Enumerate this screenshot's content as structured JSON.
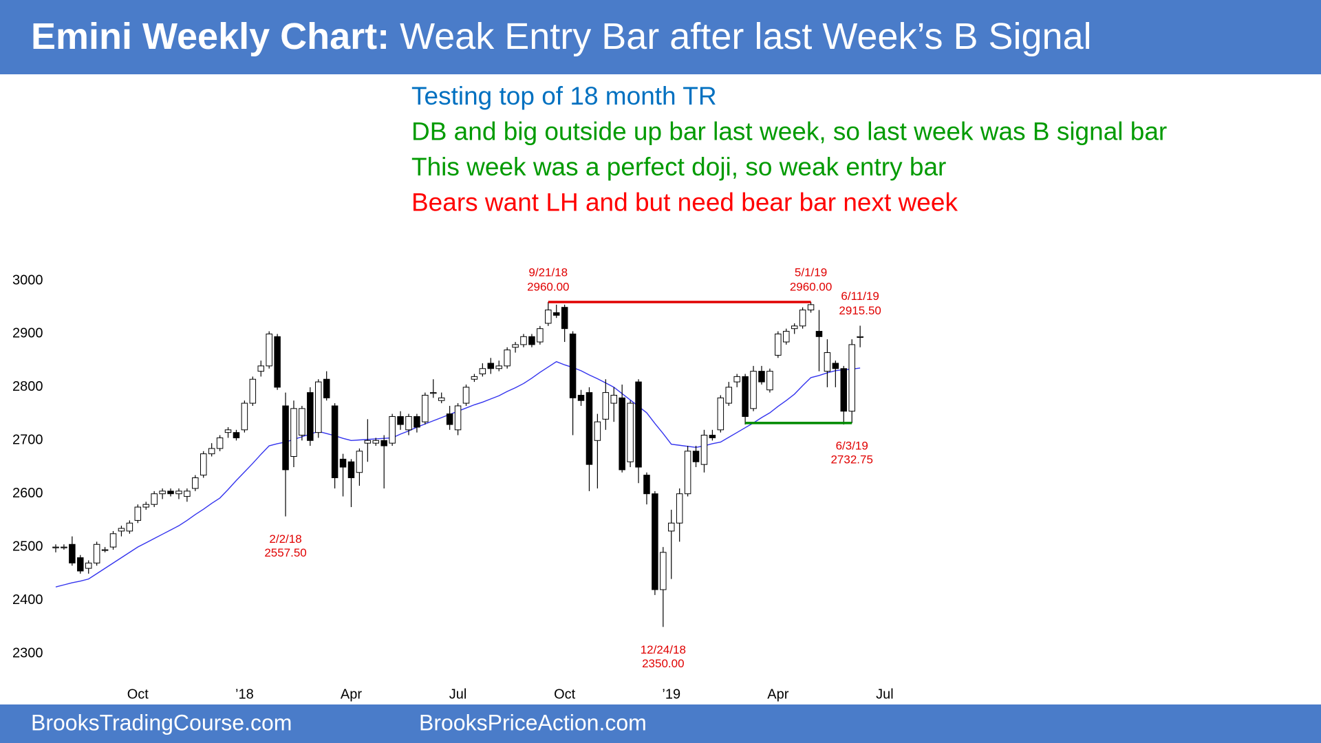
{
  "chart_data": {
    "type": "candlestick",
    "title_lead": "Emini Weekly Chart:",
    "title": " Weak Entry Bar after last Week’s B Signal",
    "notes": [
      {
        "text": "Testing top of 18 month TR",
        "color": "#0070c0"
      },
      {
        "text": "DB and big outside up bar last week, so last week was B signal bar",
        "color": "#009a00"
      },
      {
        "text": "This week was a perfect doji, so weak entry bar",
        "color": "#009a00"
      },
      {
        "text": "Bears want LH and but need bear bar next week",
        "color": "#ff0000"
      }
    ],
    "footer": [
      "BrooksTradingCourse.com",
      "BrooksPriceAction.com"
    ],
    "categories": [
      null,
      null,
      null,
      null,
      null,
      null,
      null,
      null,
      null,
      null,
      "Oct",
      null,
      null,
      null,
      null,
      null,
      null,
      null,
      null,
      null,
      null,
      null,
      null,
      "’18",
      null,
      null,
      null,
      null,
      null,
      null,
      null,
      null,
      null,
      null,
      null,
      null,
      "Apr",
      null,
      null,
      null,
      null,
      null,
      null,
      null,
      null,
      null,
      null,
      null,
      null,
      "Jul",
      null,
      null,
      null,
      null,
      null,
      null,
      null,
      null,
      null,
      null,
      null,
      null,
      "Oct",
      null,
      null,
      null,
      null,
      null,
      null,
      null,
      null,
      null,
      null,
      null,
      null,
      "’19",
      null,
      null,
      null,
      null,
      null,
      null,
      null,
      null,
      null,
      null,
      null,
      null,
      "Apr",
      null,
      null,
      null,
      null,
      null,
      null,
      null,
      null,
      null,
      null,
      null,
      null,
      "Jul",
      null
    ],
    "open": [
      2500,
      2500,
      2505,
      2480,
      2460,
      2470,
      2495,
      2500,
      2530,
      2530,
      2550,
      2575,
      2580,
      2600,
      2605,
      2600,
      2595,
      2610,
      2635,
      2675,
      2685,
      2715,
      2715,
      2720,
      2770,
      2830,
      2840,
      2895,
      2765,
      2670,
      2710,
      2790,
      2715,
      2815,
      2765,
      2665,
      2660,
      2640,
      2695,
      2695,
      2700,
      2695,
      2745,
      2720,
      2745,
      2735,
      2790,
      2775,
      2750,
      2720,
      2770,
      2815,
      2825,
      2845,
      2835,
      2840,
      2875,
      2880,
      2895,
      2885,
      2920,
      2940,
      2950,
      2900,
      2785,
      2790,
      2700,
      2740,
      2770,
      2780,
      2660,
      2810,
      2635,
      2600,
      2420,
      2530,
      2545,
      2600,
      2680,
      2655,
      2710,
      2720,
      2770,
      2810,
      2820,
      2760,
      2830,
      2795,
      2860,
      2885,
      2910,
      2915,
      2945,
      2905,
      2830,
      2845,
      2835,
      2755,
      2895,
      null,
      null,
      null,
      null
    ],
    "high": [
      2505,
      2505,
      2520,
      2485,
      2475,
      2510,
      2500,
      2530,
      2540,
      2550,
      2580,
      2585,
      2605,
      2610,
      2610,
      2610,
      2610,
      2635,
      2680,
      2695,
      2710,
      2725,
      2720,
      2775,
      2820,
      2850,
      2905,
      2900,
      2790,
      2775,
      2765,
      2800,
      2815,
      2830,
      2770,
      2675,
      2665,
      2685,
      2740,
      2705,
      2710,
      2750,
      2755,
      2750,
      2750,
      2790,
      2815,
      2790,
      2765,
      2770,
      2805,
      2825,
      2845,
      2855,
      2850,
      2875,
      2885,
      2900,
      2900,
      2915,
      2960,
      2955,
      2955,
      2905,
      2795,
      2800,
      2750,
      2815,
      2800,
      2805,
      2775,
      2815,
      2640,
      2605,
      2500,
      2570,
      2610,
      2690,
      2690,
      2720,
      2720,
      2785,
      2810,
      2825,
      2825,
      2840,
      2840,
      2835,
      2905,
      2910,
      2920,
      2950,
      2960,
      2945,
      2890,
      2850,
      2840,
      2890,
      2915.5,
      null,
      null,
      null,
      null
    ],
    "low": [
      2490,
      2495,
      2465,
      2450,
      2450,
      2465,
      2490,
      2495,
      2520,
      2525,
      2545,
      2570,
      2575,
      2590,
      2595,
      2590,
      2585,
      2605,
      2630,
      2670,
      2680,
      2705,
      2700,
      2715,
      2765,
      2820,
      2835,
      2795,
      2557.5,
      2650,
      2700,
      2690,
      2705,
      2775,
      2610,
      2595,
      2575,
      2615,
      2660,
      2690,
      2610,
      2690,
      2720,
      2710,
      2715,
      2730,
      2780,
      2770,
      2720,
      2710,
      2765,
      2810,
      2820,
      2825,
      2830,
      2835,
      2865,
      2875,
      2875,
      2880,
      2915,
      2930,
      2885,
      2710,
      2765,
      2605,
      2610,
      2720,
      2735,
      2640,
      2650,
      2620,
      2580,
      2410,
      2350,
      2440,
      2510,
      2595,
      2650,
      2640,
      2700,
      2715,
      2765,
      2800,
      2730,
      2755,
      2805,
      2790,
      2855,
      2880,
      2900,
      2910,
      2940,
      2830,
      2800,
      2800,
      2730,
      2732.75,
      2875,
      null,
      null,
      null,
      null
    ],
    "close": [
      2500,
      2500,
      2470,
      2455,
      2470,
      2505,
      2495,
      2525,
      2535,
      2545,
      2575,
      2580,
      2600,
      2605,
      2600,
      2605,
      2605,
      2630,
      2675,
      2685,
      2705,
      2720,
      2705,
      2770,
      2815,
      2840,
      2900,
      2800,
      2645,
      2760,
      2760,
      2700,
      2810,
      2780,
      2630,
      2650,
      2630,
      2680,
      2700,
      2700,
      2690,
      2745,
      2730,
      2745,
      2725,
      2785,
      2790,
      2780,
      2730,
      2765,
      2800,
      2820,
      2835,
      2835,
      2840,
      2870,
      2880,
      2895,
      2880,
      2910,
      2945,
      2935,
      2910,
      2780,
      2775,
      2655,
      2735,
      2790,
      2785,
      2645,
      2770,
      2650,
      2600,
      2420,
      2490,
      2545,
      2600,
      2680,
      2660,
      2710,
      2705,
      2780,
      2800,
      2820,
      2745,
      2830,
      2810,
      2830,
      2900,
      2905,
      2915,
      2945,
      2955,
      2895,
      2865,
      2835,
      2755,
      2880,
      2895,
      null,
      null,
      null,
      null
    ],
    "bull_color": "#ffffff",
    "bear_color": "#000000",
    "ma": {
      "color": "#3333ee",
      "values": [
        2425,
        2429,
        2433,
        2436,
        2440,
        2450,
        2460,
        2470,
        2480,
        2490,
        2500,
        2508,
        2516,
        2524,
        2532,
        2540,
        2550,
        2561,
        2571,
        2582,
        2592,
        2608,
        2625,
        2641,
        2657,
        2674,
        2690,
        2694,
        2697,
        2702,
        2707,
        2712,
        2717,
        2713,
        2709,
        2704,
        2700,
        2701,
        2702,
        2703,
        2704,
        2705,
        2712,
        2718,
        2725,
        2731,
        2737,
        2743,
        2749,
        2755,
        2761,
        2767,
        2772,
        2778,
        2784,
        2792,
        2799,
        2807,
        2817,
        2828,
        2838,
        2848,
        2842,
        2837,
        2831,
        2823,
        2816,
        2808,
        2800,
        2788,
        2776,
        2764,
        2752,
        2732,
        2713,
        2693,
        2691,
        2689,
        2687,
        2690,
        2694,
        2697,
        2706,
        2715,
        2724,
        2733,
        2743,
        2752,
        2764,
        2775,
        2787,
        2803,
        2818,
        2822,
        2827,
        2831,
        2833,
        2834,
        2836,
        null,
        null,
        null,
        null
      ]
    },
    "hlines": [
      {
        "value": 2960,
        "color": "#e00000",
        "from": 60,
        "to": 92
      },
      {
        "value": 2732.75,
        "color": "#008a00",
        "from": 84,
        "to": 97
      }
    ],
    "annotations": [
      {
        "date": "9/21/18",
        "value": 2960,
        "label": "2960.00",
        "index": 60,
        "position": "above"
      },
      {
        "date": "5/1/19",
        "value": 2960,
        "label": "2960.00",
        "index": 92,
        "position": "above"
      },
      {
        "date": "6/11/19",
        "value": 2915.5,
        "label": "2915.50",
        "index": 98,
        "position": "above"
      },
      {
        "date": "2/2/18",
        "value": 2557.5,
        "label": "2557.50",
        "index": 28,
        "position": "below"
      },
      {
        "date": "12/24/18",
        "value": 2350,
        "label": "2350.00",
        "index": 74,
        "position": "below"
      },
      {
        "date": "6/3/19",
        "value": 2732.75,
        "label": "2732.75",
        "index": 97,
        "position": "below"
      }
    ],
    "annotation_color": "#e00000",
    "ylim": [
      2300,
      3000
    ],
    "yticks": [
      2300,
      2400,
      2500,
      2600,
      2700,
      2800,
      2900,
      3000
    ]
  }
}
